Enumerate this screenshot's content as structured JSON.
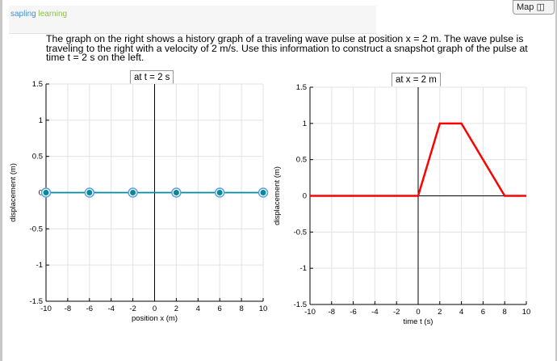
{
  "header": {
    "logo_part1": "sapling",
    "logo_part2": "learning",
    "map_label": "Map",
    "map_icon": "sitemap-icon"
  },
  "prompt": "The graph on the right shows a history graph of a traveling wave pulse at position x = 2 m. The wave pulse is traveling to the right with a velocity of 2 m/s. Use this information to construct a snapshot graph of the pulse at time t = 2 s on the left.",
  "chart_data": [
    {
      "type": "line",
      "title": "at t = 2 s",
      "xlabel": "position x (m)",
      "ylabel": "displacement (m)",
      "xlim": [
        -10,
        10
      ],
      "ylim": [
        -1.5,
        1.5
      ],
      "grid": true,
      "xticks": [
        "-10",
        "-8",
        "-6",
        "-4",
        "-2",
        "0",
        "2",
        "4",
        "6",
        "8",
        "10"
      ],
      "yticks": [
        "1.5",
        "1",
        "0.5",
        "0",
        "-0.5",
        "-1",
        "-1.5"
      ],
      "series": [
        {
          "color": "#008a9a",
          "markers": true,
          "x": [
            -10,
            -6,
            -2,
            2,
            6,
            10
          ],
          "y": [
            0,
            0,
            0,
            0,
            0,
            0
          ]
        }
      ]
    },
    {
      "type": "line",
      "title": "at x = 2 m",
      "xlabel": "time t (s)",
      "ylabel": "displacement (m)",
      "xlim": [
        -10,
        10
      ],
      "ylim": [
        -1.5,
        1.5
      ],
      "grid": true,
      "xticks": [
        "-10",
        "-8",
        "-6",
        "-4",
        "-2",
        "0",
        "2",
        "4",
        "6",
        "8",
        "10"
      ],
      "yticks": [
        "1.5",
        "1",
        "0.5",
        "0",
        "-0.5",
        "-1",
        "-1.5"
      ],
      "series": [
        {
          "color": "#ff0000",
          "markers": false,
          "x": [
            -10,
            0,
            2,
            4,
            8,
            10
          ],
          "y": [
            0,
            0,
            1,
            1,
            0,
            0
          ]
        }
      ]
    }
  ]
}
